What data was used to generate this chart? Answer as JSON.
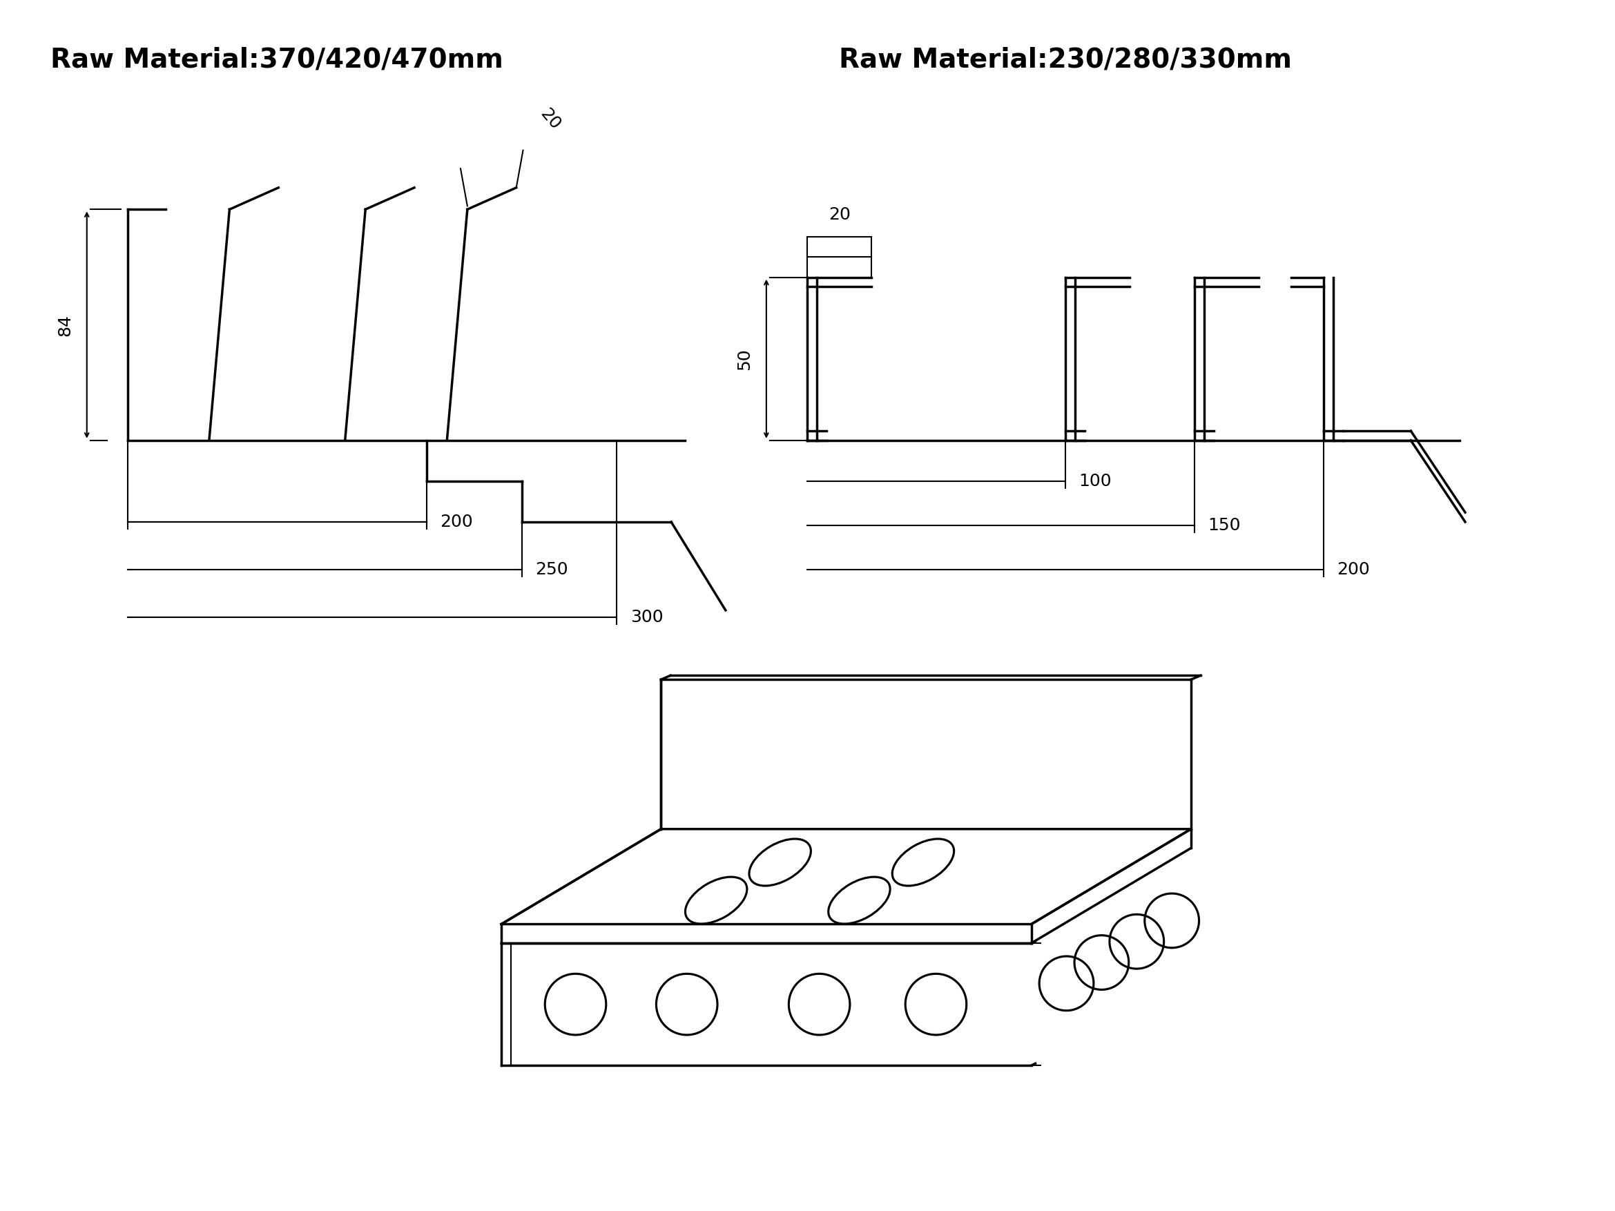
{
  "bg_color": "#ffffff",
  "line_color": "#000000",
  "title_left": "Raw Material:370/420/470mm",
  "title_right": "Raw Material:230/280/330mm",
  "title_fontsize": 28,
  "dim_fontsize": 18,
  "lw_profile": 2.5,
  "lw_dim": 1.5
}
